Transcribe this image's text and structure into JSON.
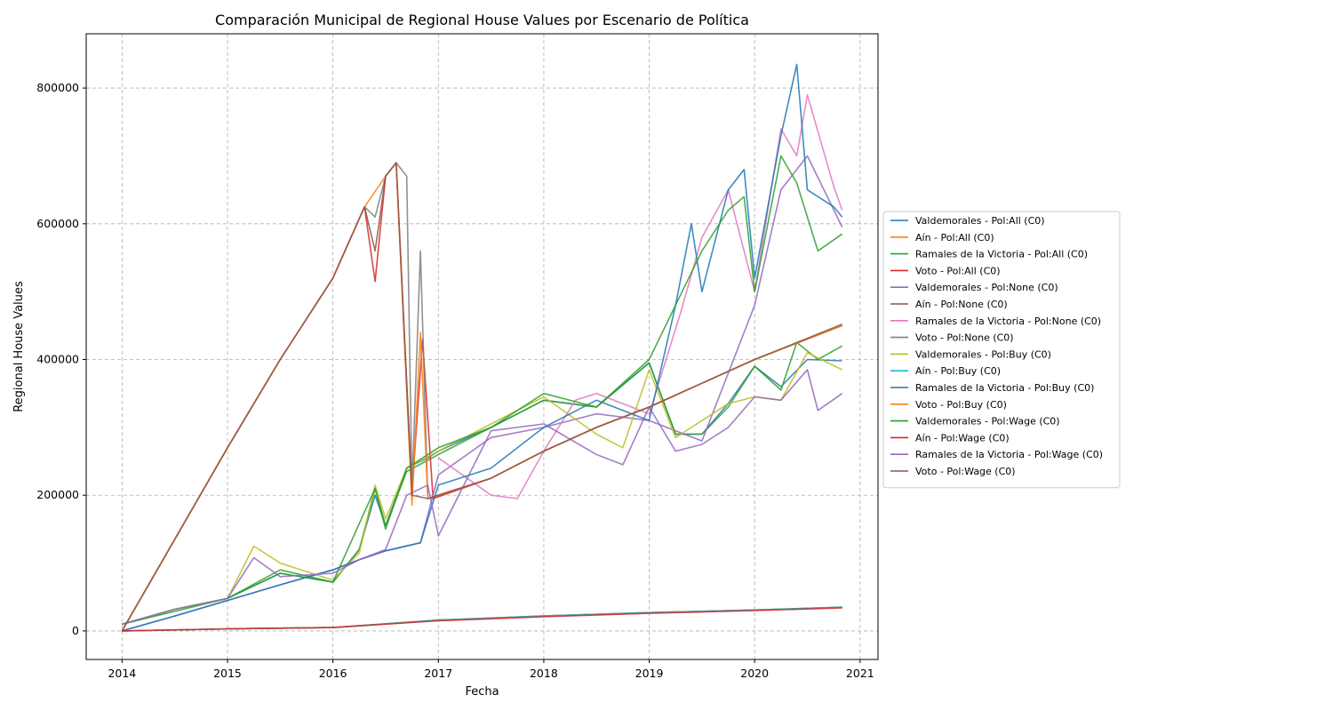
{
  "chart_data": {
    "type": "line",
    "title": "Comparación Municipal de Regional House Values por Escenario de Política",
    "xlabel": "Fecha",
    "ylabel": "Regional House Values",
    "xlim": [
      2013.66,
      2021.17
    ],
    "ylim": [
      -42000,
      880000
    ],
    "x_ticks": [
      2014,
      2015,
      2016,
      2017,
      2018,
      2019,
      2020,
      2021
    ],
    "y_ticks": [
      0,
      200000,
      400000,
      600000,
      800000
    ],
    "grid": true,
    "legend_position": "outside-right",
    "series": [
      {
        "name": "Valdemorales - Pol:All (C0)",
        "color": "#1f77b4",
        "x": [
          2014,
          2014.5,
          2015,
          2015.5,
          2016,
          2016.25,
          2016.4,
          2016.5,
          2016.7,
          2016.9,
          2017,
          2017.5,
          2018,
          2018.5,
          2019,
          2019.25,
          2019.5,
          2019.75,
          2020,
          2020.25,
          2020.5,
          2020.83
        ],
        "y": [
          10000,
          32000,
          48000,
          85000,
          72000,
          120000,
          200000,
          155000,
          240000,
          255000,
          265000,
          300000,
          340000,
          330000,
          395000,
          290000,
          290000,
          335000,
          390000,
          360000,
          400000,
          398000
        ]
      },
      {
        "name": "Aín - Pol:All (C0)",
        "color": "#ff7f0e",
        "x": [
          2014,
          2015,
          2016,
          2017,
          2018,
          2019,
          2020,
          2020.83
        ],
        "y": [
          0,
          3000,
          5000,
          16000,
          22000,
          27000,
          31000,
          35000
        ]
      },
      {
        "name": "Ramales de la Victoria - Pol:All (C0)",
        "color": "#2ca02c",
        "x": [
          2014,
          2014.5,
          2015,
          2015.5,
          2016,
          2016.25,
          2016.4,
          2016.5,
          2016.7,
          2017,
          2017.5,
          2018,
          2018.5,
          2019,
          2019.25,
          2019.5,
          2019.75,
          2020,
          2020.25,
          2020.4,
          2020.6,
          2020.83
        ],
        "y": [
          10000,
          32000,
          48000,
          90000,
          72000,
          120000,
          210000,
          155000,
          235000,
          260000,
          300000,
          340000,
          330000,
          395000,
          290000,
          290000,
          330000,
          390000,
          355000,
          425000,
          400000,
          420000
        ]
      },
      {
        "name": "Voto - Pol:All (C0)",
        "color": "#d62728",
        "x": [
          2014,
          2015,
          2015.5,
          2016,
          2016.3,
          2016.4,
          2016.5,
          2016.6,
          2016.75,
          2016.85,
          2016.95,
          2017.5,
          2018,
          2018.5,
          2019,
          2019.5,
          2020,
          2020.83
        ],
        "y": [
          0,
          270000,
          400000,
          520000,
          625000,
          515000,
          670000,
          690000,
          205000,
          430000,
          195000,
          225000,
          265000,
          300000,
          330000,
          365000,
          400000,
          450000
        ]
      },
      {
        "name": "Valdemorales - Pol:None (C0)",
        "color": "#9467bd",
        "x": [
          2014,
          2014.5,
          2015,
          2015.5,
          2016,
          2016.25,
          2016.5,
          2016.83,
          2017,
          2017.5,
          2018,
          2018.5,
          2019,
          2019.5,
          2020,
          2020.25,
          2020.5,
          2020.83
        ],
        "y": [
          0,
          22000,
          45000,
          68000,
          90000,
          105000,
          118000,
          130000,
          230000,
          285000,
          300000,
          320000,
          310000,
          280000,
          480000,
          650000,
          700000,
          595000
        ]
      },
      {
        "name": "Aín - Pol:None (C0)",
        "color": "#8c564b",
        "x": [
          2014,
          2015,
          2016,
          2017,
          2018,
          2019,
          2020,
          2020.83
        ],
        "y": [
          0,
          3000,
          5000,
          16000,
          22000,
          27000,
          31000,
          35000
        ]
      },
      {
        "name": "Ramales de la Victoria - Pol:None (C0)",
        "color": "#e377c2",
        "x": [
          2017,
          2017.5,
          2017.75,
          2018,
          2018.3,
          2018.5,
          2019,
          2019.3,
          2019.5,
          2019.75,
          2020,
          2020.25,
          2020.4,
          2020.5,
          2020.75,
          2020.83
        ],
        "y": [
          255000,
          200000,
          195000,
          265000,
          340000,
          350000,
          320000,
          470000,
          580000,
          650000,
          500000,
          740000,
          700000,
          790000,
          655000,
          620000
        ]
      },
      {
        "name": "Voto - Pol:None (C0)",
        "color": "#7f7f7f",
        "x": [
          2014,
          2015,
          2015.5,
          2016,
          2016.3,
          2016.4,
          2016.5,
          2016.6,
          2016.7,
          2016.75,
          2016.83,
          2016.9,
          2017.5,
          2018,
          2018.5,
          2019,
          2019.5,
          2020,
          2020.83
        ],
        "y": [
          0,
          270000,
          400000,
          520000,
          625000,
          610000,
          670000,
          690000,
          670000,
          210000,
          560000,
          195000,
          225000,
          265000,
          300000,
          330000,
          365000,
          400000,
          450000
        ]
      },
      {
        "name": "Valdemorales - Pol:Buy (C0)",
        "color": "#bcbd22",
        "x": [
          2014,
          2014.5,
          2015,
          2015.25,
          2015.5,
          2016,
          2016.25,
          2016.4,
          2016.5,
          2016.7,
          2017,
          2017.5,
          2018,
          2018.5,
          2018.75,
          2019,
          2019.25,
          2019.5,
          2019.75,
          2020,
          2020.25,
          2020.5,
          2020.83
        ],
        "y": [
          10000,
          32000,
          48000,
          125000,
          100000,
          75000,
          115000,
          215000,
          165000,
          240000,
          265000,
          305000,
          345000,
          290000,
          270000,
          385000,
          285000,
          310000,
          335000,
          345000,
          340000,
          410000,
          385000
        ]
      },
      {
        "name": "Aín - Pol:Buy (C0)",
        "color": "#17becf",
        "x": [
          2014,
          2015,
          2016,
          2017,
          2018,
          2019,
          2020,
          2020.83
        ],
        "y": [
          0,
          3000,
          5000,
          16000,
          22000,
          27000,
          31000,
          35000
        ]
      },
      {
        "name": "Ramales de la Victoria - Pol:Buy (C0)",
        "color": "#1f77b4",
        "x": [
          2014,
          2014.5,
          2015,
          2015.5,
          2016,
          2016.25,
          2016.5,
          2016.83,
          2017,
          2017.5,
          2018,
          2018.5,
          2019,
          2019.25,
          2019.4,
          2019.5,
          2019.75,
          2019.9,
          2020,
          2020.25,
          2020.4,
          2020.5,
          2020.75,
          2020.83
        ],
        "y": [
          0,
          22000,
          45000,
          68000,
          90000,
          105000,
          118000,
          130000,
          215000,
          240000,
          300000,
          340000,
          310000,
          480000,
          600000,
          500000,
          650000,
          680000,
          520000,
          730000,
          835000,
          650000,
          625000,
          610000
        ]
      },
      {
        "name": "Voto - Pol:Buy (C0)",
        "color": "#ff7f0e",
        "x": [
          2014,
          2015,
          2015.5,
          2016,
          2016.3,
          2016.5,
          2016.6,
          2016.75,
          2016.83,
          2016.9,
          2017.5,
          2018,
          2018.5,
          2019,
          2019.5,
          2020,
          2020.83
        ],
        "y": [
          0,
          270000,
          400000,
          520000,
          625000,
          670000,
          690000,
          185000,
          440000,
          195000,
          225000,
          265000,
          300000,
          330000,
          365000,
          400000,
          450000
        ]
      },
      {
        "name": "Valdemorales - Pol:Wage (C0)",
        "color": "#2ca02c",
        "x": [
          2014,
          2015,
          2015.5,
          2016,
          2016.4,
          2016.5,
          2016.7,
          2017,
          2017.5,
          2018,
          2018.5,
          2019,
          2019.5,
          2019.75,
          2019.9,
          2020,
          2020.25,
          2020.4,
          2020.6,
          2020.83
        ],
        "y": [
          10000,
          48000,
          85000,
          72000,
          210000,
          150000,
          240000,
          270000,
          300000,
          350000,
          330000,
          400000,
          560000,
          620000,
          640000,
          500000,
          700000,
          660000,
          560000,
          585000
        ]
      },
      {
        "name": "Aín - Pol:Wage (C0)",
        "color": "#d62728",
        "x": [
          2014,
          2015,
          2016,
          2017,
          2018,
          2019,
          2020,
          2020.83
        ],
        "y": [
          0,
          3000,
          5000,
          15000,
          21000,
          26000,
          30000,
          34000
        ]
      },
      {
        "name": "Ramales de la Victoria - Pol:Wage (C0)",
        "color": "#9467bd",
        "x": [
          2014,
          2014.5,
          2015,
          2015.25,
          2015.5,
          2016,
          2016.25,
          2016.5,
          2016.7,
          2016.9,
          2017,
          2017.5,
          2018,
          2018.5,
          2018.75,
          2019,
          2019.25,
          2019.5,
          2019.75,
          2020,
          2020.25,
          2020.5,
          2020.6,
          2020.83
        ],
        "y": [
          10000,
          32000,
          48000,
          108000,
          80000,
          85000,
          105000,
          120000,
          200000,
          215000,
          140000,
          295000,
          305000,
          260000,
          245000,
          330000,
          265000,
          275000,
          300000,
          345000,
          340000,
          385000,
          325000,
          350000
        ]
      },
      {
        "name": "Voto - Pol:Wage (C0)",
        "color": "#8c564b",
        "x": [
          2014,
          2015,
          2015.5,
          2016,
          2016.3,
          2016.4,
          2016.5,
          2016.6,
          2016.75,
          2016.9,
          2017.5,
          2018,
          2018.5,
          2019,
          2019.5,
          2020,
          2020.83
        ],
        "y": [
          0,
          270000,
          400000,
          520000,
          625000,
          560000,
          670000,
          690000,
          200000,
          195000,
          225000,
          265000,
          300000,
          330000,
          365000,
          400000,
          452000
        ]
      }
    ]
  }
}
